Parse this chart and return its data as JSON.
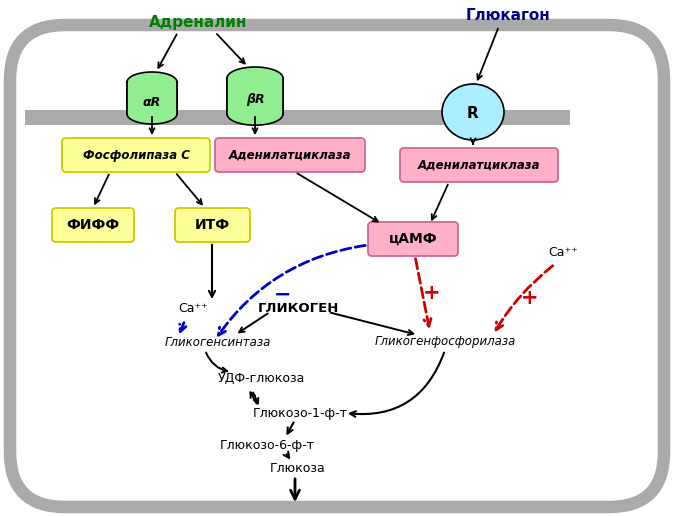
{
  "adrenalin_label": "Адреналин",
  "adrenalin_color": "#008000",
  "glucagon_label": "Глюкагон",
  "glucagon_color": "#00008B",
  "receptor_aR_label": "αR",
  "receptor_bR_label": "βR",
  "receptor_R_label": "R",
  "receptor_fill": "#90EE90",
  "receptor_R_fill": "#aaeeff",
  "adenylate_fill": "#ffb0c8",
  "adenylate_border": "#cc6699",
  "adenylate1_label": "Аденилатциклаза",
  "adenylate2_label": "Аденилатциклаза",
  "fosfolipaza_label": "Фосфолипаза C",
  "fosfolipaza_fill": "#ffff99",
  "fosfolipaza_border": "#cccc00",
  "fiff_label": "ФИФФ",
  "itf_label": "ИТФ",
  "yellow_fill": "#ffff99",
  "yellow_border": "#cccc00",
  "camf_label": "цАМФ",
  "camf_fill": "#ffb0c8",
  "camf_border": "#cc6699",
  "glikogen_label": "ГЛИКОГЕН",
  "glikogensintaza_label": "Гликогенсинтаза",
  "glikogenfosforilyaza_label": "Гликогенфосфорилаза",
  "udf_label": "УДФ-глюкоза",
  "glukoso1_label": "Глюкозо-1-ф-т",
  "glukoso6_label": "Глюкозо-6-ф-т",
  "glukoza_label": "Глюкоза",
  "ca_label": "Ca⁺⁺",
  "blue_dashed_color": "#0000cc",
  "red_dashed_color": "#cc0000",
  "plus_color": "#cc0000",
  "minus_color": "#0000cc",
  "cell_border": "#aaaaaa",
  "membrane_color": "#aaaaaa",
  "figw": 6.76,
  "figh": 5.16,
  "dpi": 100
}
